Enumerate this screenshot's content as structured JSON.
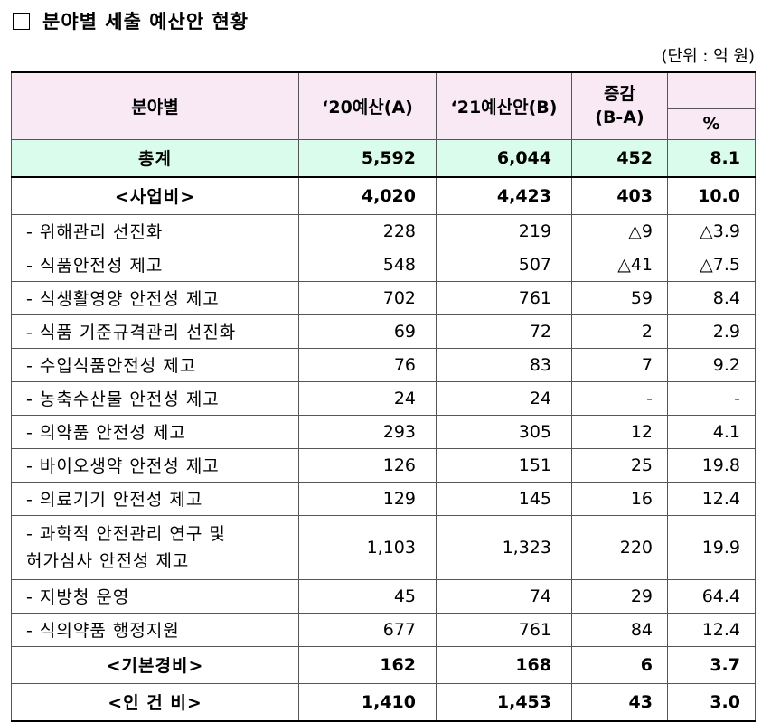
{
  "title": "분야별 세출 예산안 현황",
  "unit_note": "(단위 : 억 원)",
  "headers": {
    "category": "분야별",
    "y2020": "‘20예산(A)",
    "y2021": "‘21예산안(B)",
    "change_line1": "증감",
    "change_line2": "(B-A)",
    "percent": "%"
  },
  "total": {
    "label": "총계",
    "a": "5,592",
    "b": "6,044",
    "diff": "452",
    "pct": "8.1"
  },
  "project": {
    "label": "<사업비>",
    "a": "4,020",
    "b": "4,423",
    "diff": "403",
    "pct": "10.0"
  },
  "items": [
    {
      "label": "- 위해관리 선진화",
      "a": "228",
      "b": "219",
      "diff": "△9",
      "pct": "△3.9"
    },
    {
      "label": "- 식품안전성 제고",
      "a": "548",
      "b": "507",
      "diff": "△41",
      "pct": "△7.5"
    },
    {
      "label": "- 식생활영양 안전성 제고",
      "a": "702",
      "b": "761",
      "diff": "59",
      "pct": "8.4"
    },
    {
      "label": "- 식품 기준규격관리 선진화",
      "a": "69",
      "b": "72",
      "diff": "2",
      "pct": "2.9"
    },
    {
      "label": "- 수입식품안전성 제고",
      "a": "76",
      "b": "83",
      "diff": "7",
      "pct": "9.2"
    },
    {
      "label": "- 농축수산물 안전성 제고",
      "a": "24",
      "b": "24",
      "diff": "-",
      "pct": "-"
    },
    {
      "label": "- 의약품 안전성 제고",
      "a": "293",
      "b": "305",
      "diff": "12",
      "pct": "4.1"
    },
    {
      "label": "- 바이오생약 안전성 제고",
      "a": "126",
      "b": "151",
      "diff": "25",
      "pct": "19.8"
    },
    {
      "label": "- 의료기기 안전성 제고",
      "a": "129",
      "b": "145",
      "diff": "16",
      "pct": "12.4"
    }
  ],
  "item_twoline": {
    "label1": "- 과학적 안전관리 연구 및",
    "label2": "허가심사 안전성 제고",
    "a": "1,103",
    "b": "1,323",
    "diff": "220",
    "pct": "19.9"
  },
  "items_after": [
    {
      "label": "- 지방청 운영",
      "a": "45",
      "b": "74",
      "diff": "29",
      "pct": "64.4"
    },
    {
      "label": "- 식의약품 행정지원",
      "a": "677",
      "b": "761",
      "diff": "84",
      "pct": "12.4"
    }
  ],
  "basic": {
    "label": "<기본경비>",
    "a": "162",
    "b": "168",
    "diff": "6",
    "pct": "3.7"
  },
  "personnel": {
    "label": "<인 건 비>",
    "a": "1,410",
    "b": "1,453",
    "diff": "43",
    "pct": "3.0"
  }
}
